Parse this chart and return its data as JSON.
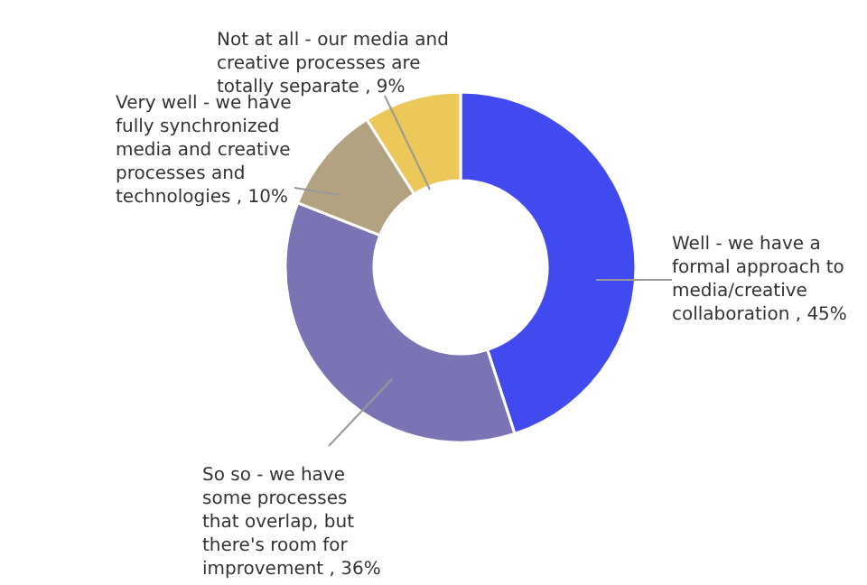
{
  "chart_data": {
    "type": "donut",
    "categories": [
      "Well - we have a formal approach to media/creative collaboration",
      "So so - we have some processes that overlap, but there's room for improvement",
      "Very well - we have fully synchronized media and creative processes and technologies",
      "Not at all - our media and creative processes are totally separate"
    ],
    "values": [
      45,
      36,
      10,
      9
    ],
    "value_labels": [
      "45%",
      "36%",
      "10%",
      "9%"
    ],
    "colors": [
      "#414aef",
      "#7b74b4",
      "#b3a27f",
      "#ecc759"
    ]
  }
}
